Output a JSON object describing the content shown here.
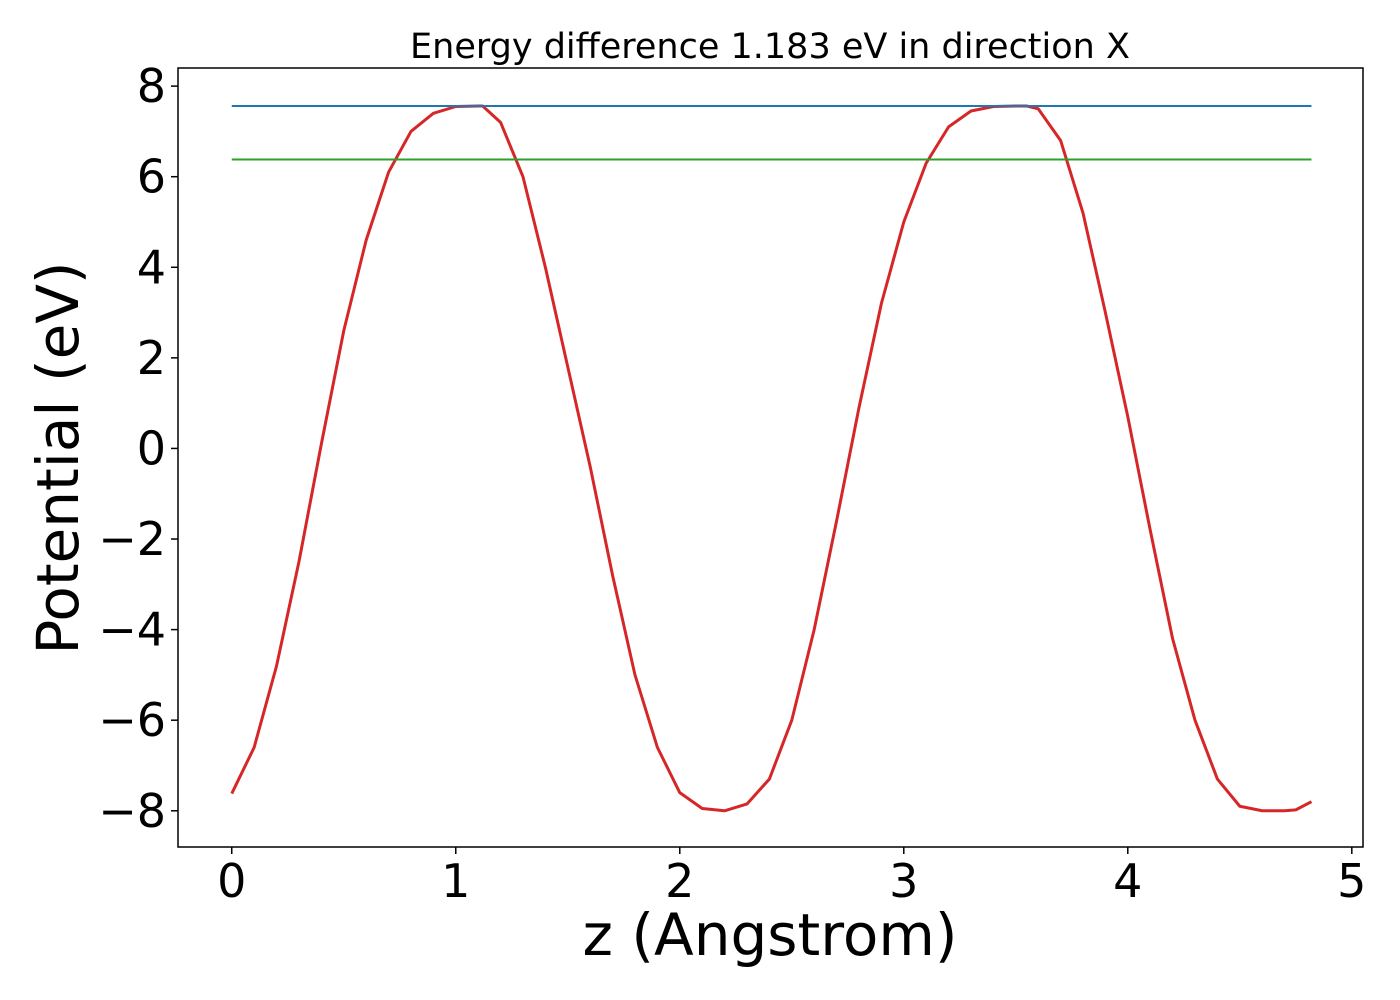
{
  "chart_data": {
    "type": "line",
    "title": "Energy difference 1.183 eV in direction X",
    "xlabel": "z (Angstrom)",
    "ylabel": "Potential (eV)",
    "xlim": [
      -0.24,
      5.05
    ],
    "ylim": [
      -8.8,
      8.4
    ],
    "xticks": [
      0,
      1,
      2,
      3,
      4,
      5
    ],
    "yticks": [
      -8,
      -6,
      -4,
      -2,
      0,
      2,
      4,
      6,
      8
    ],
    "xtick_labels": [
      "0",
      "1",
      "2",
      "3",
      "4",
      "5"
    ],
    "ytick_labels": [
      "−8",
      "−6",
      "−4",
      "−2",
      "0",
      "2",
      "4",
      "6",
      "8"
    ],
    "grid": false,
    "legend": "none",
    "series": [
      {
        "color": "#d62728",
        "x": [
          0,
          0.1,
          0.2,
          0.3,
          0.4,
          0.5,
          0.6,
          0.7,
          0.8,
          0.9,
          1.0,
          1.1,
          1.12,
          1.2,
          1.3,
          1.4,
          1.5,
          1.6,
          1.7,
          1.8,
          1.9,
          2.0,
          2.1,
          2.2,
          2.3,
          2.4,
          2.5,
          2.6,
          2.7,
          2.8,
          2.9,
          3.0,
          3.1,
          3.2,
          3.3,
          3.4,
          3.5,
          3.55,
          3.6,
          3.7,
          3.8,
          3.9,
          4.0,
          4.1,
          4.2,
          4.3,
          4.4,
          4.5,
          4.6,
          4.7,
          4.75,
          4.82
        ],
        "values": [
          -7.62,
          -6.6,
          -4.8,
          -2.5,
          0.1,
          2.6,
          4.6,
          6.1,
          7.0,
          7.4,
          7.55,
          7.56,
          7.56,
          7.2,
          6.0,
          4.0,
          1.8,
          -0.4,
          -2.8,
          -5.0,
          -6.6,
          -7.6,
          -7.95,
          -8.0,
          -7.85,
          -7.3,
          -6.0,
          -4.0,
          -1.6,
          0.9,
          3.2,
          5.0,
          6.3,
          7.1,
          7.45,
          7.55,
          7.56,
          7.56,
          7.5,
          6.8,
          5.2,
          3.0,
          0.7,
          -1.8,
          -4.2,
          -6.0,
          -7.3,
          -7.9,
          -8.0,
          -8.0,
          -7.98,
          -7.8
        ]
      },
      {
        "color": "#1f77b4",
        "x": [
          0,
          4.82
        ],
        "values": [
          7.56,
          7.56
        ]
      },
      {
        "color": "#2ca02c",
        "x": [
          0,
          4.82
        ],
        "values": [
          6.38,
          6.38
        ]
      }
    ]
  }
}
